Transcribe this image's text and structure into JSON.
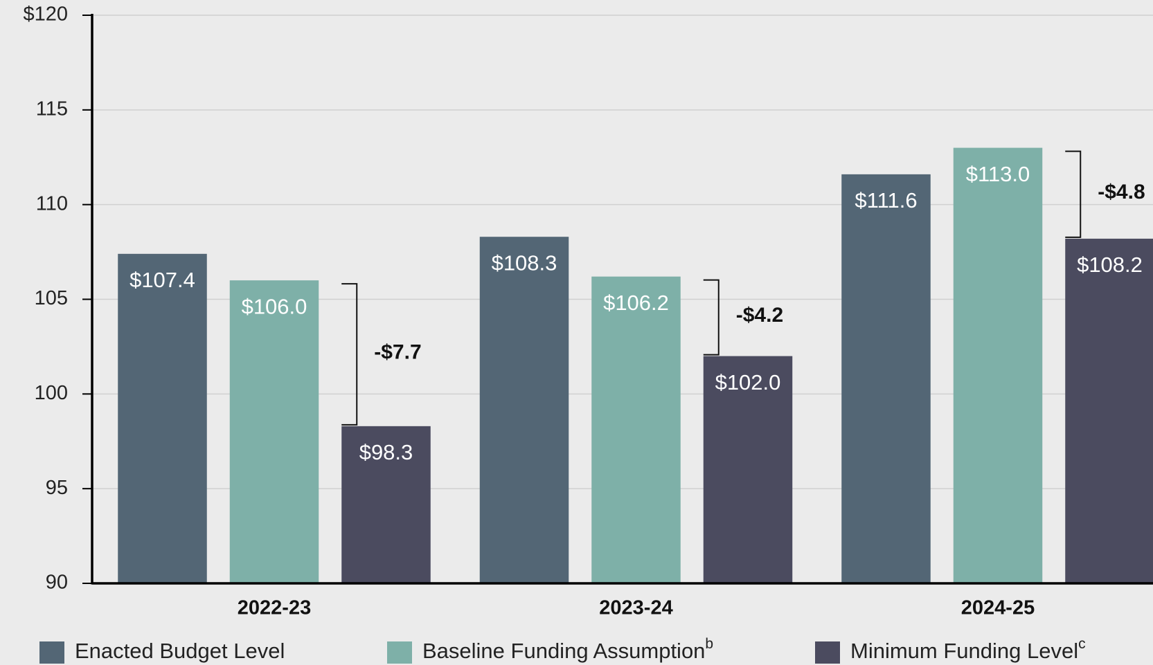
{
  "chart_data": {
    "type": "bar",
    "categories": [
      "2022-23",
      "2023-24",
      "2024-25"
    ],
    "series": [
      {
        "name": "Enacted Budget Level",
        "color": "#536675",
        "values": [
          107.4,
          108.3,
          111.6
        ],
        "value_labels": [
          "$107.4",
          "$108.3",
          "$111.6"
        ]
      },
      {
        "name": "Baseline Funding Assumption",
        "note": "b",
        "color": "#7eb0a8",
        "values": [
          106.0,
          106.2,
          113.0
        ],
        "value_labels": [
          "$106.0",
          "$106.2",
          "$113.0"
        ]
      },
      {
        "name": "Minimum Funding Level",
        "note": "c",
        "color": "#4b4b5f",
        "values": [
          98.3,
          102.0,
          108.2
        ],
        "value_labels": [
          "$98.3",
          "$102.0",
          "$108.2"
        ]
      }
    ],
    "annotations": [
      "-$7.7",
      "-$4.2",
      "-$4.8"
    ],
    "ylim": [
      90,
      120
    ],
    "yticks": [
      90,
      95,
      100,
      105,
      110,
      115,
      {
        "value": 120,
        "label": "$120"
      }
    ],
    "grid": true
  }
}
